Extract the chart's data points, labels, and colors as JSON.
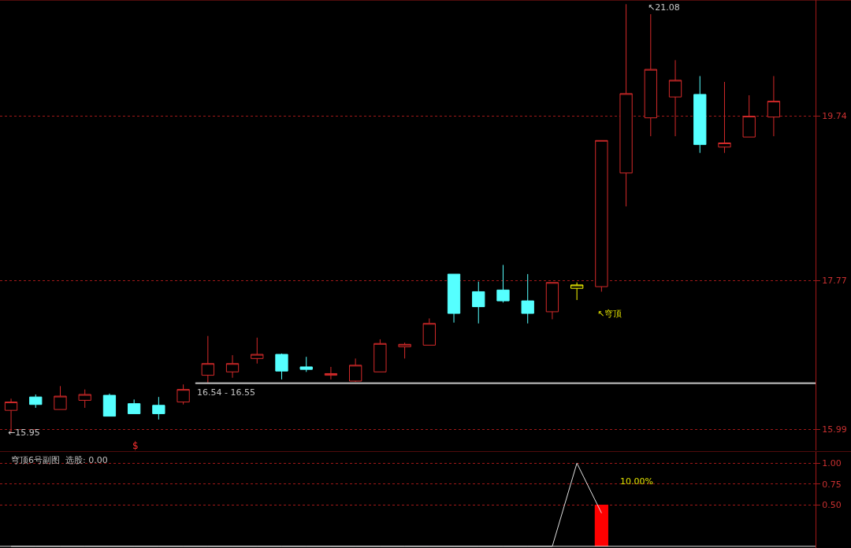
{
  "chart_data": [
    {
      "type": "candlestick",
      "categories": [
        null,
        null,
        null,
        null,
        null,
        null,
        null,
        null,
        null,
        null,
        null,
        null,
        null,
        null,
        null,
        null,
        null,
        null,
        null,
        null,
        null,
        null,
        null,
        null,
        null,
        null,
        null,
        null,
        null,
        null,
        null,
        null
      ],
      "ohlc": [
        [
          16.22,
          16.36,
          15.95,
          16.32
        ],
        [
          16.38,
          16.41,
          16.25,
          16.29
        ],
        [
          16.23,
          16.51,
          16.23,
          16.39
        ],
        [
          16.34,
          16.47,
          16.25,
          16.41
        ],
        [
          16.4,
          16.42,
          16.15,
          16.15
        ],
        [
          16.3,
          16.35,
          16.18,
          16.18
        ],
        [
          16.28,
          16.38,
          16.11,
          16.18
        ],
        [
          16.32,
          16.53,
          16.29,
          16.47
        ],
        [
          16.64,
          17.11,
          16.55,
          16.78
        ],
        [
          16.68,
          16.88,
          16.61,
          16.78
        ],
        [
          16.84,
          17.09,
          16.78,
          16.89
        ],
        [
          16.89,
          16.9,
          16.59,
          16.69
        ],
        [
          16.74,
          16.86,
          16.68,
          16.71
        ],
        [
          16.64,
          16.74,
          16.59,
          16.66
        ],
        [
          16.57,
          16.84,
          16.56,
          16.76
        ],
        [
          16.68,
          17.07,
          16.68,
          17.02
        ],
        [
          16.98,
          17.03,
          16.84,
          17.01
        ],
        [
          17.0,
          17.32,
          17.0,
          17.26
        ],
        [
          17.85,
          17.85,
          17.27,
          17.38
        ],
        [
          17.64,
          17.76,
          17.26,
          17.46
        ],
        [
          17.66,
          17.96,
          17.51,
          17.53
        ],
        [
          17.53,
          17.85,
          17.26,
          17.38
        ],
        [
          17.4,
          17.75,
          17.31,
          17.75
        ],
        [
          17.68,
          17.75,
          17.54,
          17.72
        ],
        [
          17.7,
          19.45,
          17.64,
          19.45
        ],
        [
          19.06,
          21.08,
          18.66,
          20.01
        ],
        [
          19.72,
          20.96,
          19.5,
          20.3
        ],
        [
          19.97,
          20.41,
          19.5,
          20.17
        ],
        [
          20.0,
          20.22,
          19.3,
          19.4
        ],
        [
          19.37,
          20.15,
          19.3,
          19.42
        ],
        [
          19.49,
          19.99,
          19.49,
          19.74
        ],
        [
          19.73,
          20.22,
          19.5,
          19.92
        ]
      ],
      "colors": [
        "#d42a2a",
        "#55ffff",
        "#d42a2a",
        "#d42a2a",
        "#55ffff",
        "#55ffff",
        "#55ffff",
        "#d42a2a",
        "#d42a2a",
        "#d42a2a",
        "#d42a2a",
        "#55ffff",
        "#55ffff",
        "#d42a2a",
        "#d42a2a",
        "#d42a2a",
        "#d42a2a",
        "#d42a2a",
        "#55ffff",
        "#55ffff",
        "#55ffff",
        "#55ffff",
        "#d42a2a",
        "#ffff00",
        "#d42a2a",
        "#d42a2a",
        "#d42a2a",
        "#d42a2a",
        "#55ffff",
        "#d42a2a",
        "#d42a2a",
        "#d42a2a"
      ],
      "ylim": [
        15.74,
        21.13
      ],
      "yticks": [
        15.99,
        17.77,
        19.74
      ],
      "grid": "y",
      "tick_labels": "y",
      "bands": [
        {
          "axis": "y",
          "from": 16.54,
          "to": 16.55,
          "label": "16.54 - 16.55",
          "color": "#c0c0c0"
        }
      ],
      "annotations": [
        "←15.95",
        "↖21.08",
        "↖穹顶",
        "$"
      ]
    },
    {
      "type": "line",
      "title": "穹顶6号副图  选股: 0.00",
      "categories": [
        null,
        null,
        null,
        null,
        null,
        null,
        null,
        null,
        null,
        null,
        null,
        null,
        null,
        null,
        null,
        null,
        null,
        null,
        null,
        null,
        null,
        null,
        null,
        null,
        null,
        null,
        null,
        null,
        null,
        null,
        null,
        null
      ],
      "series": [
        {
          "type": "line",
          "color": "#e0e0e0",
          "values": [
            0,
            0,
            0,
            0,
            0,
            0,
            0,
            0,
            0,
            0,
            0,
            0,
            0,
            0,
            0,
            0,
            0,
            0,
            0,
            0,
            0,
            0,
            0,
            1,
            0.4,
            null,
            null,
            null,
            null,
            null,
            null,
            null
          ]
        },
        {
          "type": "bar",
          "color": "#ff0000",
          "values": [
            null,
            null,
            null,
            null,
            null,
            null,
            null,
            null,
            null,
            null,
            null,
            null,
            null,
            null,
            null,
            null,
            null,
            null,
            null,
            null,
            null,
            null,
            null,
            null,
            0.5,
            null,
            null,
            null,
            null,
            null,
            null,
            null
          ]
        }
      ],
      "annotations": [
        "10.00%"
      ],
      "ylim": [
        -0.02,
        1.14
      ],
      "yticks": [
        {
          "value": 0.5,
          "label": "0.50"
        },
        0.75,
        {
          "value": 1.0,
          "label": "1.00"
        }
      ],
      "grid": "y",
      "tick_labels": "y",
      "ref_lines": [
        {
          "axis": "y",
          "value": 0,
          "color": "#e0e0e0"
        }
      ]
    }
  ]
}
